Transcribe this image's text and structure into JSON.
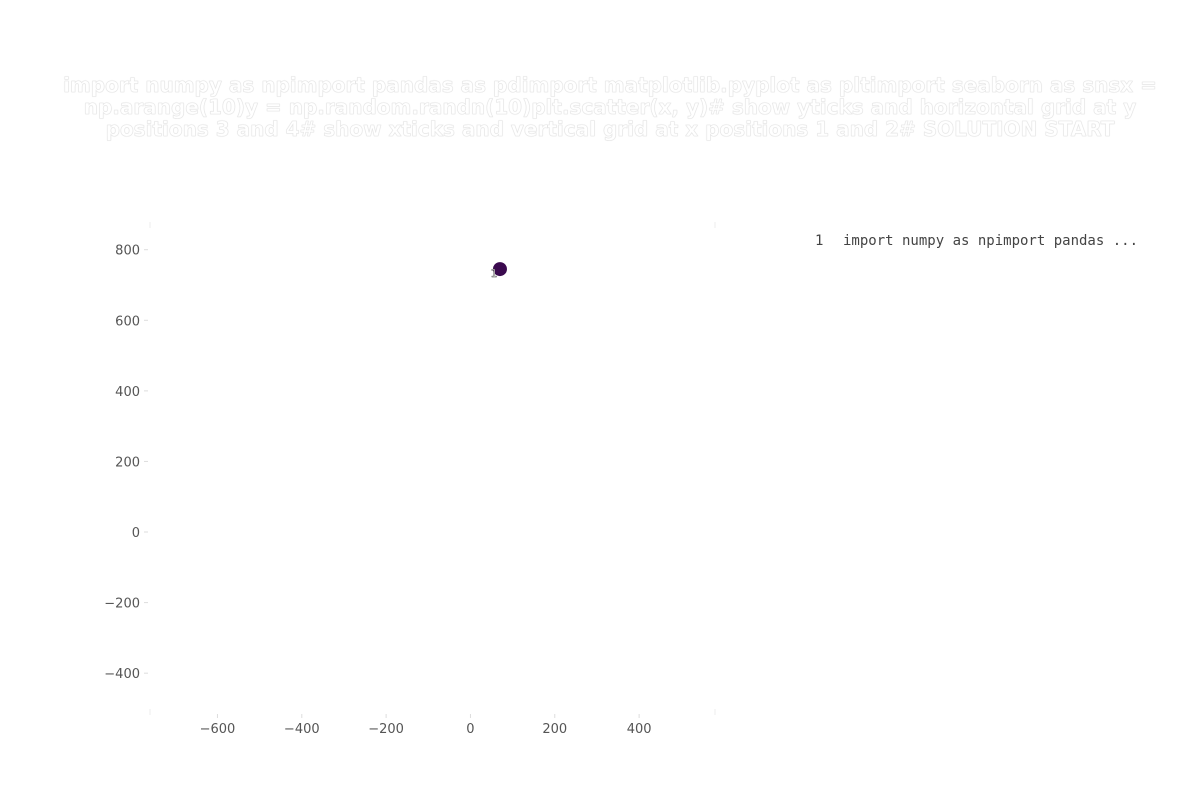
{
  "chart_data": {
    "type": "scatter",
    "title": "import numpy as npimport pandas as pdimport matplotlib.pyplot as pltimport seaborn as snsx = np.arange(10)y = np.random.randn(10)plt.scatter(x, y)# show yticks and horizontal grid at y positions 3 and 4# show xticks and vertical grid at x positions 1 and 2# SOLUTION START",
    "xlabel": "",
    "ylabel": "",
    "xlim": [
      -760,
      580
    ],
    "ylim": [
      -510,
      870
    ],
    "xticks": [
      -600,
      -400,
      -200,
      0,
      200,
      400
    ],
    "yticks": [
      -400,
      -200,
      0,
      200,
      400,
      600,
      800
    ],
    "xtick_labels": [
      "−600",
      "−400",
      "−200",
      "0",
      "200",
      "400"
    ],
    "ytick_labels": [
      "−400",
      "−200",
      "0",
      "200",
      "400",
      "600",
      "800"
    ],
    "grid": false,
    "legend_placement": "top-right",
    "points": [
      {
        "x": 70,
        "y": 745,
        "label": "1",
        "color": "#3b0a4f"
      }
    ],
    "legend": [
      {
        "marker": "1",
        "text": "import numpy as npimport pandas  ..."
      }
    ]
  }
}
